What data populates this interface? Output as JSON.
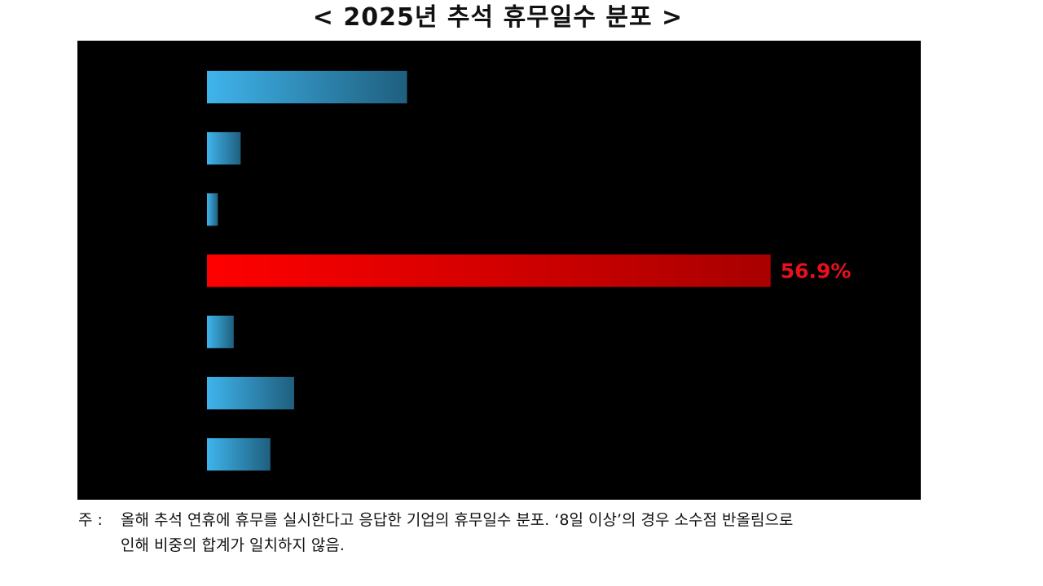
{
  "title": "< 2025년 추석 휴무일수 분포 >",
  "note": {
    "label": "주 :",
    "line1": "올해 추석 연휴에 휴무를 실시한다고 응답한 기업의 휴무일수 분포. ‘8일 이상’의 경우 소수점 반올림으로",
    "line2": "인해 비중의 합계가 일치하지 않음."
  },
  "colors": {
    "background": "#000000",
    "bar_blue_start": "#3fb4ec",
    "bar_blue_end": "#1f5f7e",
    "bar_red_start": "#ff0000",
    "bar_red_end": "#a80000",
    "highlight_label": "#e8101a"
  },
  "chart_data": {
    "type": "bar",
    "orientation": "horizontal",
    "values": [
      20.2,
      3.4,
      1.1,
      56.9,
      2.7,
      8.8,
      6.4
    ],
    "highlight_index": 3,
    "data_labels": [
      "",
      "",
      "",
      "56.9%",
      "",
      "",
      ""
    ],
    "xlim": [
      0,
      70
    ]
  }
}
